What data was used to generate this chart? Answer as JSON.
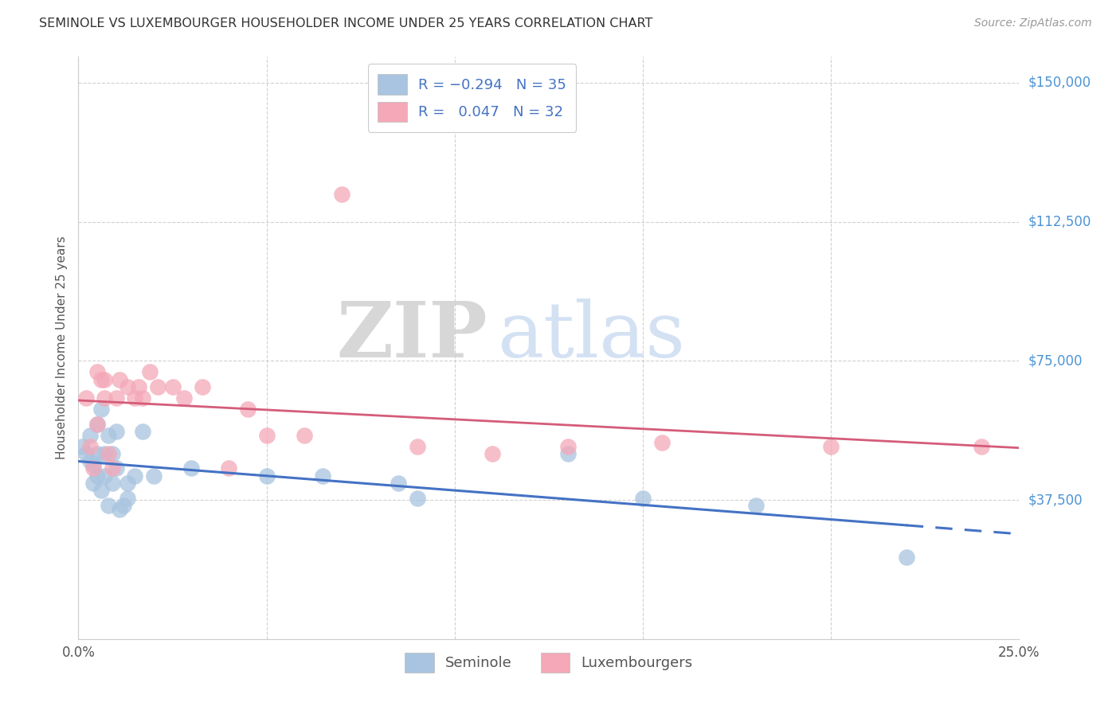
{
  "title": "SEMINOLE VS LUXEMBOURGER HOUSEHOLDER INCOME UNDER 25 YEARS CORRELATION CHART",
  "source": "Source: ZipAtlas.com",
  "ylabel": "Householder Income Under 25 years",
  "ytick_labels": [
    "$150,000",
    "$112,500",
    "$75,000",
    "$37,500"
  ],
  "ytick_values": [
    150000,
    112500,
    75000,
    37500
  ],
  "xlim": [
    0.0,
    0.25
  ],
  "ylim": [
    0,
    157000
  ],
  "legend_label1": "Seminole",
  "legend_label2": "Luxembourgers",
  "seminole_color": "#a8c4e0",
  "luxembourger_color": "#f4a8b8",
  "seminole_trend_color": "#4472c4",
  "luxembourger_trend_color": "#d45c7a",
  "background_color": "#ffffff",
  "grid_color": "#cccccc",
  "ytick_color": "#4d94d4",
  "seminole_x": [
    0.001,
    0.002,
    0.003,
    0.003,
    0.004,
    0.004,
    0.005,
    0.005,
    0.005,
    0.006,
    0.006,
    0.007,
    0.007,
    0.008,
    0.008,
    0.009,
    0.009,
    0.01,
    0.01,
    0.011,
    0.012,
    0.013,
    0.013,
    0.015,
    0.017,
    0.02,
    0.03,
    0.05,
    0.065,
    0.085,
    0.09,
    0.13,
    0.15,
    0.18,
    0.22
  ],
  "seminole_y": [
    52000,
    50000,
    48000,
    55000,
    42000,
    47000,
    44000,
    50000,
    58000,
    40000,
    62000,
    44000,
    50000,
    36000,
    55000,
    42000,
    50000,
    46000,
    56000,
    35000,
    36000,
    38000,
    42000,
    44000,
    56000,
    44000,
    46000,
    44000,
    44000,
    42000,
    38000,
    50000,
    38000,
    36000,
    22000
  ],
  "luxembourger_x": [
    0.002,
    0.003,
    0.004,
    0.005,
    0.005,
    0.006,
    0.007,
    0.007,
    0.008,
    0.009,
    0.01,
    0.011,
    0.013,
    0.015,
    0.016,
    0.017,
    0.019,
    0.021,
    0.025,
    0.028,
    0.033,
    0.04,
    0.045,
    0.05,
    0.06,
    0.07,
    0.09,
    0.11,
    0.13,
    0.155,
    0.2,
    0.24
  ],
  "luxembourger_y": [
    65000,
    52000,
    46000,
    72000,
    58000,
    70000,
    70000,
    65000,
    50000,
    46000,
    65000,
    70000,
    68000,
    65000,
    68000,
    65000,
    72000,
    68000,
    68000,
    65000,
    68000,
    46000,
    62000,
    55000,
    55000,
    120000,
    52000,
    50000,
    52000,
    53000,
    52000,
    52000
  ]
}
